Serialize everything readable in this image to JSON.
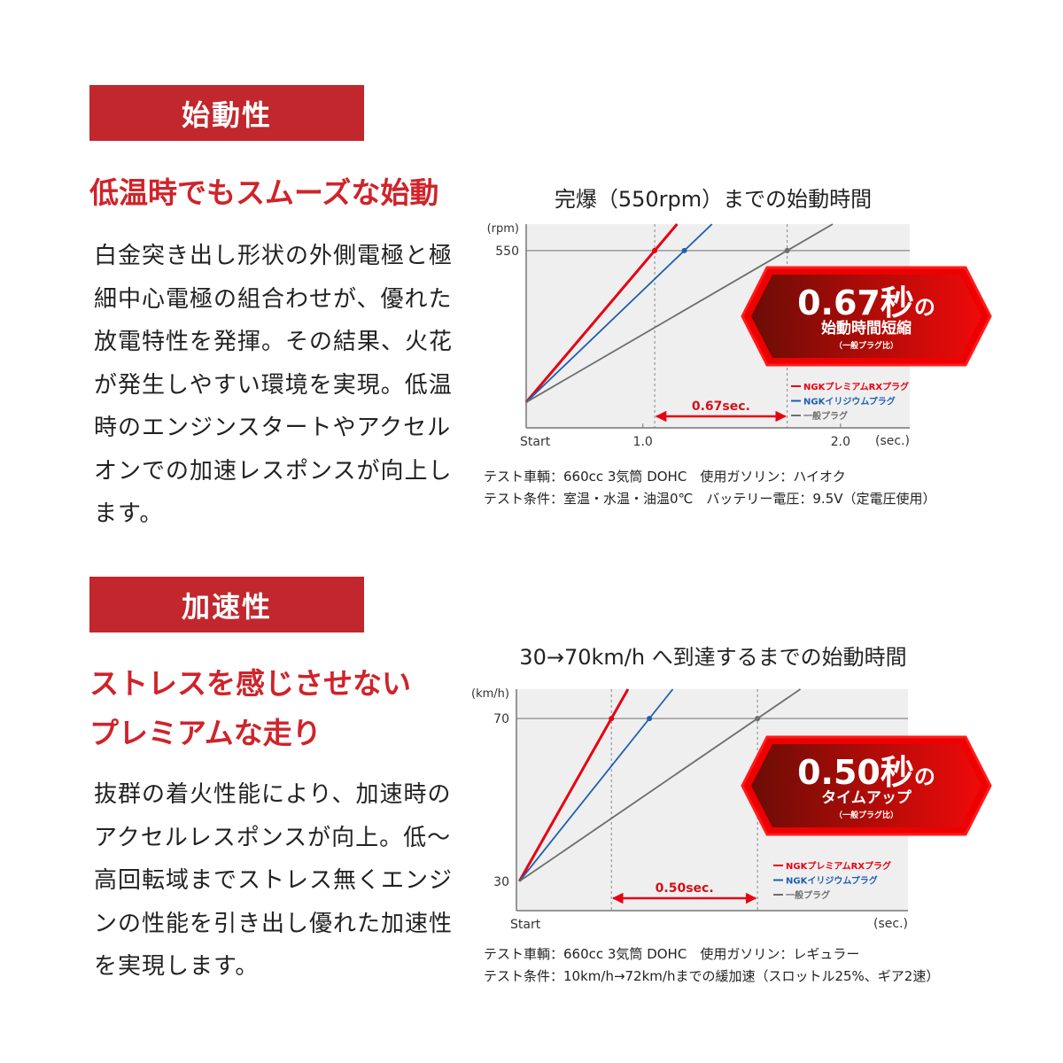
{
  "section1": {
    "heading": "始動性",
    "lead": "低温時でもスムーズな始動",
    "body": "白金突き出し形状の外側電極と極細中心電極の組合わせが、優れた放電特性を発揮。その結果、火花が発生しやすい環境を実現。低温時のエンジンスタートやアクセルオンでの加速レスポンスが向上します。",
    "notes": [
      "テスト車輌：660cc 3気筒 DOHC　使用ガソリン：ハイオク",
      "テスト条件：室温・水温・油温0℃　バッテリー電圧：9.5V（定電圧使用）"
    ]
  },
  "section2": {
    "heading": "加速性",
    "lead_lines": [
      "ストレスを感じさせない",
      "プレミアムな走り"
    ],
    "body": "抜群の着火性能により、加速時のアクセルレスポンスが向上。低～高回転域までストレス無くエンジンの性能を引き出し優れた加速性を実現します。",
    "notes": [
      "テスト車輌：660cc 3気筒 DOHC　使用ガソリン：レギュラー",
      "テスト条件：10km/h→72km/hまでの緩加速（スロットル25%、ギア2速）"
    ]
  },
  "chart_data": [
    {
      "type": "line",
      "title": "完爆（550rpm）までの始動時間",
      "xlabel": "(sec.)",
      "ylabel": "(rpm)",
      "x_start_label": "Start",
      "x_ticks": [
        1.0,
        2.0
      ],
      "x_tick_labels": [
        "1.0",
        "2.0"
      ],
      "y_ticks": [
        550
      ],
      "y_tick_labels": [
        "550"
      ],
      "xlim": [
        0.41,
        2.35
      ],
      "ylim": [
        -93,
        646
      ],
      "grid": false,
      "legend_position": "bottom-right",
      "series": [
        {
          "name": "NGKプレミアムRXプラグ",
          "color": "#e60012",
          "start": [
            0.41,
            0
          ],
          "reach": [
            1.06,
            550
          ]
        },
        {
          "name": "NGKイリジウムプラグ",
          "color": "#1f5fb0",
          "start": [
            0.41,
            0
          ],
          "reach": [
            1.21,
            550
          ]
        },
        {
          "name": "一般プラグ",
          "color": "#6e6e6e",
          "start": [
            0.41,
            0
          ],
          "reach": [
            1.73,
            550
          ]
        }
      ],
      "difference_label": "0.67sec.",
      "badge": {
        "main": "0.67秒",
        "suffix": "の",
        "sub": "始動時間短縮",
        "note": "（一般プラグ比）"
      }
    },
    {
      "type": "line",
      "title": "30→70km/h へ到達するまでの始動時間",
      "xlabel": "(sec.)",
      "ylabel": "(km/h)",
      "x_start_label": "Start",
      "y_ticks": [
        30,
        70
      ],
      "y_tick_labels": [
        "30",
        "70"
      ],
      "xlim": [
        -0.01,
        1.33
      ],
      "ylim": [
        22.8,
        77.2
      ],
      "grid": false,
      "legend_position": "bottom-right",
      "series": [
        {
          "name": "NGKプレミアムRXプラグ",
          "color": "#e60012",
          "start": [
            0,
            30
          ],
          "reach": [
            0.315,
            70
          ]
        },
        {
          "name": "NGKイリジウムプラグ",
          "color": "#1f5fb0",
          "start": [
            0,
            30
          ],
          "reach": [
            0.445,
            70
          ]
        },
        {
          "name": "一般プラグ",
          "color": "#6e6e6e",
          "start": [
            0,
            30
          ],
          "reach": [
            0.815,
            70
          ]
        }
      ],
      "difference_label": "0.50sec.",
      "badge": {
        "main": "0.50秒",
        "suffix": "の",
        "sub": "タイムアップ",
        "note": "（一般プラグ比）"
      }
    }
  ]
}
